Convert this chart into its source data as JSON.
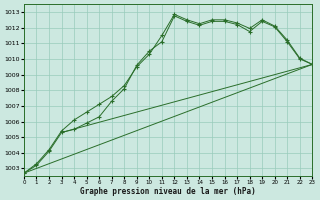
{
  "xlabel": "Graphe pression niveau de la mer (hPa)",
  "bg_color": "#cce8e0",
  "grid_color": "#99ccbb",
  "line_color": "#2a6e2a",
  "xlim": [
    0,
    23
  ],
  "ylim": [
    1002.5,
    1013.5
  ],
  "yticks": [
    1003,
    1004,
    1005,
    1006,
    1007,
    1008,
    1009,
    1010,
    1011,
    1012,
    1013
  ],
  "xticks": [
    0,
    1,
    2,
    3,
    4,
    5,
    6,
    7,
    8,
    9,
    10,
    11,
    12,
    13,
    14,
    15,
    16,
    17,
    18,
    19,
    20,
    21,
    22,
    23
  ],
  "line1_y": [
    1002.7,
    1003.2,
    1004.1,
    1005.3,
    1005.5,
    1005.9,
    1006.3,
    1007.3,
    1008.1,
    1009.6,
    1010.5,
    1011.1,
    1012.75,
    1012.4,
    1012.15,
    1012.4,
    1012.4,
    1012.2,
    1011.75,
    1012.4,
    1012.05,
    1011.1,
    1010.0,
    1009.65
  ],
  "line2_y": [
    1002.7,
    1003.3,
    1004.2,
    1005.4,
    1006.1,
    1006.6,
    1007.1,
    1007.6,
    1008.3,
    1009.5,
    1010.3,
    1011.5,
    1012.85,
    1012.5,
    1012.25,
    1012.5,
    1012.5,
    1012.3,
    1011.95,
    1012.5,
    1012.1,
    1011.2,
    1010.05,
    1009.65
  ],
  "line3_x": [
    0,
    23
  ],
  "line3_y": [
    1002.7,
    1009.65
  ],
  "line4_x": [
    3,
    23
  ],
  "line4_y": [
    1005.3,
    1009.65
  ]
}
